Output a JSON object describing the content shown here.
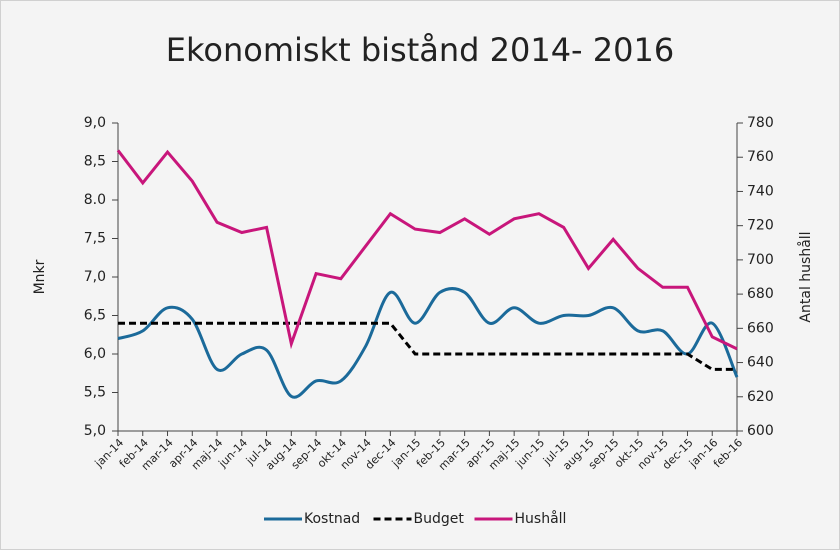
{
  "chart_data": {
    "type": "line",
    "title": "Ekonomiskt bistånd 2014- 2016",
    "y_label": "Mnkr",
    "y2_label": "Antal hushåll",
    "categories": [
      "jan-14",
      "feb-14",
      "mar-14",
      "apr-14",
      "maj-14",
      "jun-14",
      "jul-14",
      "aug-14",
      "sep-14",
      "okt-14",
      "nov-14",
      "dec-14",
      "jan-15",
      "feb-15",
      "mar-15",
      "apr-15",
      "maj-15",
      "jun-15",
      "jul-15",
      "aug-15",
      "sep-15",
      "okt-15",
      "nov-15",
      "dec-15",
      "jan-16",
      "feb-16"
    ],
    "series": [
      {
        "name": "Kostnad",
        "color": "#1b6a9a",
        "style": "smooth",
        "axis": "y",
        "values": [
          6.2,
          6.3,
          6.6,
          6.45,
          5.8,
          6.0,
          6.05,
          5.45,
          5.65,
          5.65,
          6.1,
          6.8,
          6.4,
          6.8,
          6.8,
          6.4,
          6.6,
          6.4,
          6.5,
          6.5,
          6.6,
          6.3,
          6.3,
          6.0,
          6.4,
          5.7
        ]
      },
      {
        "name": "Budget",
        "color": "#000000",
        "style": "dashed",
        "axis": "y",
        "values": [
          6.4,
          6.4,
          6.4,
          6.4,
          6.4,
          6.4,
          6.4,
          6.4,
          6.4,
          6.4,
          6.4,
          6.4,
          6.0,
          6.0,
          6.0,
          6.0,
          6.0,
          6.0,
          6.0,
          6.0,
          6.0,
          6.0,
          6.0,
          6.0,
          5.8,
          5.8
        ]
      },
      {
        "name": "Hushåll",
        "color": "#c8167b",
        "style": "straight",
        "axis": "y2",
        "values": [
          764,
          745,
          763,
          746,
          722,
          716,
          719,
          651,
          692,
          689,
          708,
          727,
          718,
          716,
          724,
          715,
          724,
          727,
          719,
          695,
          712,
          695,
          684,
          684,
          655,
          648
        ]
      }
    ],
    "ylim": [
      5.0,
      9.0
    ],
    "yticks": [
      {
        "value": 5.0,
        "label": "5,0"
      },
      {
        "value": 5.5,
        "label": "5,5"
      },
      {
        "value": 6.0,
        "label": "6,0"
      },
      {
        "value": 6.5,
        "label": "6,5"
      },
      {
        "value": 7.0,
        "label": "7,0"
      },
      {
        "value": 7.5,
        "label": "7,5"
      },
      {
        "value": 8.0,
        "label": "8.0"
      },
      {
        "value": 8.5,
        "label": "8,5"
      },
      {
        "value": 9.0,
        "label": "9,0"
      }
    ],
    "y2lim": [
      600,
      780
    ],
    "y2ticks": [
      600,
      620,
      640,
      660,
      680,
      700,
      720,
      740,
      760,
      780
    ],
    "legend": "bottom"
  }
}
